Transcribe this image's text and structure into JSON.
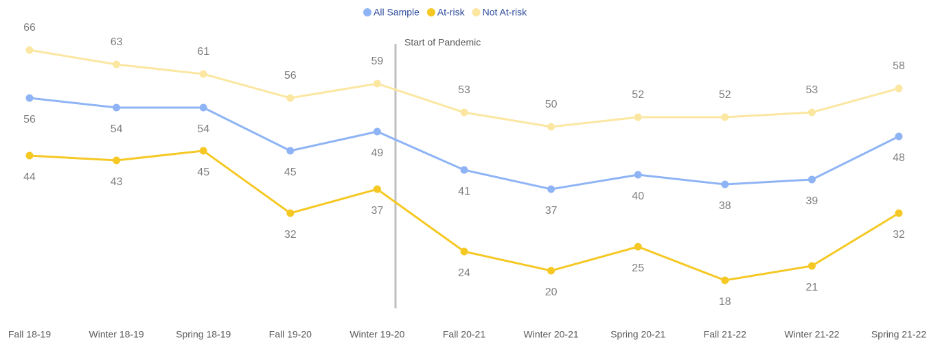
{
  "chart_data": {
    "type": "line",
    "annotation": "Start of Pandemic",
    "categories": [
      "Fall 18-19",
      "Winter 18-19",
      "Spring 18-19",
      "Fall 19-20",
      "Winter 19-20",
      "Fall 20-21",
      "Winter 20-21",
      "Spring 20-21",
      "Fall 21-22",
      "Winter 21-22",
      "Spring 21-22"
    ],
    "series": [
      {
        "name": "All Sample",
        "color": "#8fb4f5",
        "values": [
          56,
          54,
          54,
          45,
          49,
          41,
          37,
          40,
          38,
          39,
          48
        ]
      },
      {
        "name": "At-risk",
        "color": "#f5c824",
        "values": [
          44,
          43,
          45,
          32,
          37,
          24,
          20,
          25,
          18,
          21,
          32
        ]
      },
      {
        "name": "Not At-risk",
        "color": "#fbe7a1",
        "values": [
          66,
          63,
          61,
          56,
          59,
          53,
          50,
          52,
          52,
          53,
          58
        ]
      }
    ],
    "ylim": [
      10,
      70
    ],
    "legend": "top"
  }
}
